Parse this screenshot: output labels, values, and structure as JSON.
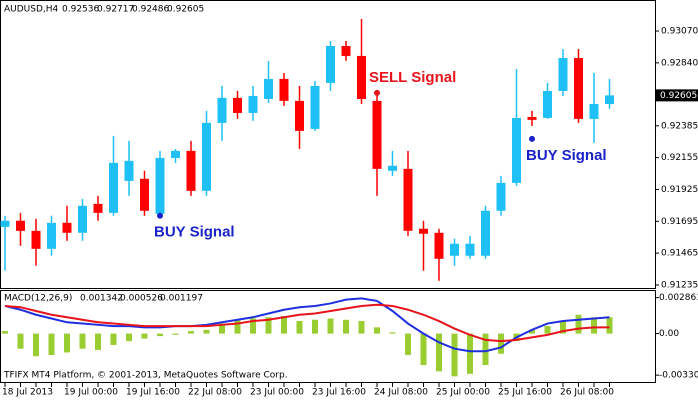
{
  "chart_data": [
    {
      "type": "candlestick",
      "symbol": "AUDUSD,H4",
      "header_values": [
        0.92536,
        0.92717,
        0.92486,
        0.92605
      ],
      "categories": [
        "18 Jul 2013",
        null,
        null,
        null,
        "19 Jul 00:00",
        null,
        null,
        null,
        "19 Jul 16:00",
        null,
        null,
        null,
        "22 Jul 08:00",
        null,
        null,
        null,
        "23 Jul 00:00",
        null,
        null,
        null,
        "23 Jul 16:00",
        null,
        null,
        null,
        "24 Jul 08:00",
        null,
        null,
        null,
        "25 Jul 00:00",
        null,
        null,
        null,
        "25 Jul 16:00",
        null,
        null,
        null,
        "26 Jul 08:00",
        null,
        null,
        null
      ],
      "open": [
        0.91655,
        0.91699,
        0.91626,
        0.91496,
        0.91684,
        0.91612,
        0.91821,
        0.91756,
        0.91987,
        0.92002,
        0.91749,
        0.92153,
        0.92204,
        0.91915,
        0.92406,
        0.92587,
        0.92478,
        0.92579,
        0.92724,
        0.92565,
        0.92363,
        0.92695,
        0.92962,
        0.9289,
        0.92565,
        0.9206,
        0.92074,
        0.91641,
        0.91612,
        0.91446,
        0.91446,
        0.91446,
        0.91771,
        0.91973,
        0.92449,
        0.92442,
        0.92637,
        0.92875,
        0.92435,
        0.92543
      ],
      "high": [
        0.91735,
        0.91756,
        0.91713,
        0.91735,
        0.91807,
        0.91857,
        0.91879,
        0.92312,
        0.92276,
        0.9206,
        0.92204,
        0.92218,
        0.92276,
        0.92493,
        0.92673,
        0.92637,
        0.92673,
        0.92854,
        0.92767,
        0.92673,
        0.92709,
        0.92998,
        0.92998,
        0.93157,
        0.92637,
        0.92204,
        0.92204,
        0.91699,
        0.91641,
        0.91569,
        0.9159,
        0.91807,
        0.92023,
        0.92796,
        0.92493,
        0.92695,
        0.9294,
        0.9294,
        0.92767,
        0.92724
      ],
      "low": [
        0.91338,
        0.91518,
        0.91374,
        0.91446,
        0.91554,
        0.91554,
        0.91699,
        0.91735,
        0.91879,
        0.91735,
        0.91735,
        0.92117,
        0.91879,
        0.91879,
        0.92276,
        0.92435,
        0.92421,
        0.92551,
        0.92529,
        0.92218,
        0.92348,
        0.92637,
        0.92854,
        0.92543,
        0.91879,
        0.92023,
        0.9159,
        0.91338,
        0.91265,
        0.91374,
        0.91424,
        0.91424,
        0.91735,
        0.91951,
        0.92384,
        0.92435,
        0.92601,
        0.92406,
        0.92262,
        0.92507
      ],
      "close": [
        0.91699,
        0.91626,
        0.91496,
        0.91684,
        0.91612,
        0.91807,
        0.91756,
        0.92117,
        0.92132,
        0.91771,
        0.92153,
        0.92204,
        0.91915,
        0.92406,
        0.92587,
        0.92478,
        0.92601,
        0.92724,
        0.92565,
        0.92348,
        0.92673,
        0.92962,
        0.9289,
        0.92579,
        0.92074,
        0.92096,
        0.91626,
        0.91605,
        0.91424,
        0.91533,
        0.91533,
        0.91771,
        0.91973,
        0.92442,
        0.92428,
        0.92637,
        0.92875,
        0.92435,
        0.92543,
        0.92605
      ],
      "up_color": "#1ec0f5",
      "down_color": "#ff0000",
      "ylim": [
        0.91213,
        0.93287
      ],
      "yticks": [
        {
          "value": 0.9307,
          "label": "0.93070"
        },
        {
          "value": 0.9284,
          "label": "0.92840"
        },
        {
          "value": 0.92385,
          "label": "0.92385"
        },
        {
          "value": 0.92155,
          "label": "0.92155"
        },
        {
          "value": 0.91925,
          "label": "0.91925"
        },
        {
          "value": 0.91695,
          "label": "0.91695"
        },
        {
          "value": 0.91465,
          "label": "0.91465"
        },
        {
          "value": 0.91235,
          "label": "0.91235"
        }
      ],
      "last_price": 0.92605,
      "annotations": [
        {
          "text": "SELL Signal",
          "candle": 24,
          "value": 0.92623,
          "color": "#e8141c"
        },
        {
          "text": "BUY Signal",
          "candle": 10,
          "value": 0.91735,
          "color": "#1a23c8"
        },
        {
          "text": "BUY Signal",
          "candle": 34,
          "value": 0.92291,
          "color": "#1a23c8"
        }
      ],
      "footer": "TFIFX MT4 Platform, © 2001-2013, MetaQuotes Software Corp."
    },
    {
      "type": "macd",
      "title": "MACD(12,26,9)",
      "header_values": [
        0.001342,
        0.000526,
        0.001197
      ],
      "ylim": [
        -0.00385,
        0.00339
      ],
      "yticks": [
        0.002861,
        {
          "value": 0,
          "label": "0.00"
        },
        -0.003302
      ],
      "histogram": {
        "color": "#9acd32",
        "values": [
          0.0002,
          -0.0012,
          -0.0018,
          -0.0017,
          -0.0015,
          -0.0012,
          -0.0013,
          -0.0009,
          -0.0006,
          -0.0004,
          -0.0002,
          -0.0001,
          0.0002,
          0.0003,
          0.0008,
          0.0011,
          0.0012,
          0.0013,
          0.0014,
          0.001,
          0.0011,
          0.0012,
          0.0011,
          0.001,
          0.0005,
          0.0001,
          -0.0017,
          -0.0025,
          -0.003,
          -0.0034,
          -0.0032,
          -0.0025,
          -0.0016,
          -0.0006,
          0.0003,
          0.0006,
          0.001,
          0.0015,
          0.0013,
          0.0013
        ]
      },
      "series": [
        {
          "color": "#1f2fe0",
          "values": [
            0.0022,
            0.0019,
            0.0015,
            0.0012,
            0.0009,
            0.0008,
            0.0007,
            0.0006,
            0.0006,
            0.0005,
            0.0005,
            0.0006,
            0.0006,
            0.0007,
            0.0009,
            0.0011,
            0.0013,
            0.0016,
            0.0019,
            0.0021,
            0.0022,
            0.0024,
            0.0027,
            0.0028,
            0.0026,
            0.0018,
            0.0008,
            0,
            -0.0007,
            -0.0012,
            -0.0014,
            -0.0014,
            -0.0011,
            -0.0003,
            0.0003,
            0.0008,
            0.001,
            0.0011,
            0.0012,
            0.0013
          ]
        },
        {
          "color": "#e8141c",
          "values": [
            0.0022,
            0.0021,
            0.0018,
            0.0015,
            0.0013,
            0.0011,
            0.0009,
            0.0008,
            0.0007,
            0.0006,
            0.0006,
            0.0006,
            0.0006,
            0.0006,
            0.0007,
            0.0008,
            0.001,
            0.0011,
            0.0013,
            0.0015,
            0.0016,
            0.0018,
            0.002,
            0.0022,
            0.0023,
            0.0022,
            0.0019,
            0.0015,
            0.001,
            0.0004,
            -0.0001,
            -0.0005,
            -0.0006,
            -0.0005,
            -0.0003,
            -0.0001,
            0.0002,
            0.0004,
            0.0005,
            0.0005
          ]
        }
      ]
    }
  ]
}
